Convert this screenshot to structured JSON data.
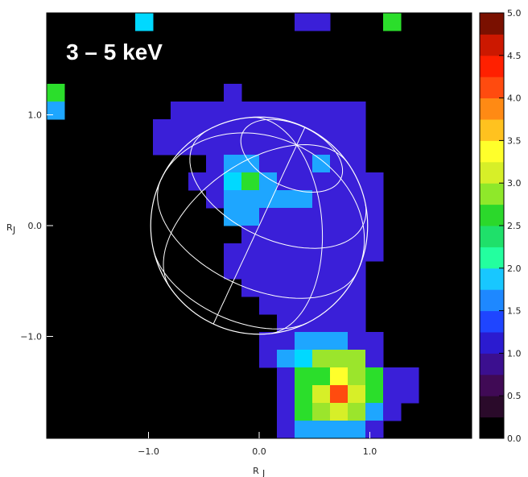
{
  "chart_data": {
    "type": "heatmap",
    "title": "3 – 5 keV",
    "xlabel": "R",
    "xlabel_sub": "J",
    "ylabel": "R",
    "ylabel_sub": "J",
    "xlim": [
      -1.92,
      1.92
    ],
    "ylim": [
      -1.92,
      1.92
    ],
    "x_ticks": [
      -1.0,
      0.0,
      1.0
    ],
    "y_ticks": [
      1.0,
      0.0,
      -1.0
    ],
    "x_tick_labels": [
      "−1.0",
      "0.0",
      "1.0"
    ],
    "y_tick_labels": [
      "1.0",
      "0.0",
      "−1.0"
    ],
    "grid_size": 24,
    "cells": [
      [
        0,
        0,
        0,
        0,
        0,
        3,
        0,
        0,
        0,
        0,
        0,
        0,
        0,
        0,
        1,
        1,
        0,
        0,
        0,
        4,
        0,
        0,
        0,
        0
      ],
      [
        0,
        0,
        0,
        0,
        0,
        0,
        0,
        0,
        0,
        0,
        0,
        0,
        0,
        0,
        0,
        0,
        0,
        0,
        0,
        0,
        0,
        0,
        0,
        0
      ],
      [
        0,
        0,
        0,
        0,
        0,
        0,
        0,
        0,
        0,
        0,
        0,
        0,
        0,
        0,
        0,
        0,
        0,
        0,
        0,
        0,
        0,
        0,
        0,
        0
      ],
      [
        0,
        0,
        0,
        0,
        0,
        0,
        0,
        0,
        0,
        0,
        0,
        0,
        0,
        0,
        0,
        0,
        0,
        0,
        0,
        0,
        0,
        0,
        0,
        0
      ],
      [
        4,
        0,
        0,
        0,
        0,
        0,
        0,
        0,
        0,
        0,
        1,
        0,
        0,
        0,
        0,
        0,
        0,
        0,
        0,
        0,
        0,
        0,
        0,
        0
      ],
      [
        2,
        0,
        0,
        0,
        0,
        0,
        0,
        1,
        1,
        1,
        1,
        1,
        1,
        1,
        1,
        1,
        1,
        1,
        0,
        0,
        0,
        0,
        0,
        0
      ],
      [
        0,
        0,
        0,
        0,
        0,
        0,
        1,
        1,
        1,
        1,
        1,
        1,
        1,
        1,
        1,
        1,
        1,
        1,
        0,
        0,
        0,
        0,
        0,
        0
      ],
      [
        0,
        0,
        0,
        0,
        0,
        0,
        1,
        1,
        1,
        1,
        1,
        1,
        1,
        1,
        1,
        1,
        1,
        1,
        0,
        0,
        0,
        0,
        0,
        0
      ],
      [
        0,
        0,
        0,
        0,
        0,
        0,
        0,
        0,
        0,
        1,
        2,
        2,
        1,
        1,
        1,
        2,
        1,
        1,
        0,
        0,
        0,
        0,
        0,
        0
      ],
      [
        0,
        0,
        0,
        0,
        0,
        0,
        0,
        0,
        1,
        1,
        3,
        4,
        2,
        1,
        1,
        1,
        1,
        1,
        1,
        0,
        0,
        0,
        0,
        0
      ],
      [
        0,
        0,
        0,
        0,
        0,
        0,
        0,
        0,
        0,
        1,
        2,
        2,
        2,
        2,
        2,
        1,
        1,
        1,
        1,
        0,
        0,
        0,
        0,
        0
      ],
      [
        0,
        0,
        0,
        0,
        0,
        0,
        0,
        0,
        0,
        0,
        2,
        2,
        1,
        1,
        1,
        1,
        1,
        1,
        1,
        0,
        0,
        0,
        0,
        0
      ],
      [
        0,
        0,
        0,
        0,
        0,
        0,
        0,
        0,
        0,
        0,
        0,
        1,
        1,
        1,
        1,
        1,
        1,
        1,
        1,
        0,
        0,
        0,
        0,
        0
      ],
      [
        0,
        0,
        0,
        0,
        0,
        0,
        0,
        0,
        0,
        0,
        1,
        1,
        1,
        1,
        1,
        1,
        1,
        1,
        1,
        0,
        0,
        0,
        0,
        0
      ],
      [
        0,
        0,
        0,
        0,
        0,
        0,
        0,
        0,
        0,
        0,
        1,
        1,
        1,
        1,
        1,
        1,
        1,
        1,
        0,
        0,
        0,
        0,
        0,
        0
      ],
      [
        0,
        0,
        0,
        0,
        0,
        0,
        0,
        0,
        0,
        0,
        0,
        1,
        1,
        1,
        1,
        1,
        1,
        1,
        0,
        0,
        0,
        0,
        0,
        0
      ],
      [
        0,
        0,
        0,
        0,
        0,
        0,
        0,
        0,
        0,
        0,
        0,
        0,
        1,
        1,
        1,
        1,
        1,
        1,
        0,
        0,
        0,
        0,
        0,
        0
      ],
      [
        0,
        0,
        0,
        0,
        0,
        0,
        0,
        0,
        0,
        0,
        0,
        0,
        0,
        1,
        1,
        1,
        1,
        1,
        0,
        0,
        0,
        0,
        0,
        0
      ],
      [
        0,
        0,
        0,
        0,
        0,
        0,
        0,
        0,
        0,
        0,
        0,
        0,
        1,
        1,
        2,
        2,
        2,
        1,
        1,
        0,
        0,
        0,
        0,
        0
      ],
      [
        0,
        0,
        0,
        0,
        0,
        0,
        0,
        0,
        0,
        0,
        0,
        0,
        1,
        2,
        3,
        5,
        5,
        5,
        1,
        0,
        0,
        0,
        0,
        0
      ],
      [
        0,
        0,
        0,
        0,
        0,
        0,
        0,
        0,
        0,
        0,
        0,
        0,
        0,
        1,
        4,
        4,
        7,
        5,
        4,
        1,
        1,
        0,
        0,
        0
      ],
      [
        0,
        0,
        0,
        0,
        0,
        0,
        0,
        0,
        0,
        0,
        0,
        0,
        0,
        1,
        4,
        6,
        9,
        6,
        4,
        1,
        1,
        0,
        0,
        0
      ],
      [
        0,
        0,
        0,
        0,
        0,
        0,
        0,
        0,
        0,
        0,
        0,
        0,
        0,
        1,
        4,
        5,
        6,
        5,
        2,
        1,
        0,
        0,
        0,
        0
      ],
      [
        0,
        0,
        0,
        0,
        0,
        0,
        0,
        0,
        0,
        0,
        0,
        0,
        0,
        1,
        2,
        2,
        2,
        2,
        1,
        0,
        0,
        0,
        0,
        0
      ]
    ],
    "colorbar": {
      "min": 0.0,
      "max": 5.0,
      "tick_values": [
        5.0,
        4.5,
        4.0,
        3.5,
        3.0,
        2.5,
        2.0,
        1.5,
        1.0,
        0.5,
        0.0
      ],
      "tick_labels": [
        "5.0",
        "4.5",
        "4.0",
        "3.5",
        "3.0",
        "2.5",
        "2.0",
        "1.5",
        "1.0",
        "0.5",
        "0.0"
      ],
      "colors": [
        "#000000",
        "#2a0a2a",
        "#400a55",
        "#3b0f8f",
        "#2b1bd0",
        "#1f45ff",
        "#1e88ff",
        "#18c7ff",
        "#23ff9f",
        "#1fe06a",
        "#2bd82b",
        "#8fe82a",
        "#d7ef28",
        "#ffff2b",
        "#ffc21f",
        "#ff8a14",
        "#ff4b0f",
        "#ff2000",
        "#cc1800",
        "#7a1000"
      ]
    },
    "overlay": "wireframe-sphere",
    "grid": false,
    "legend": "right"
  }
}
